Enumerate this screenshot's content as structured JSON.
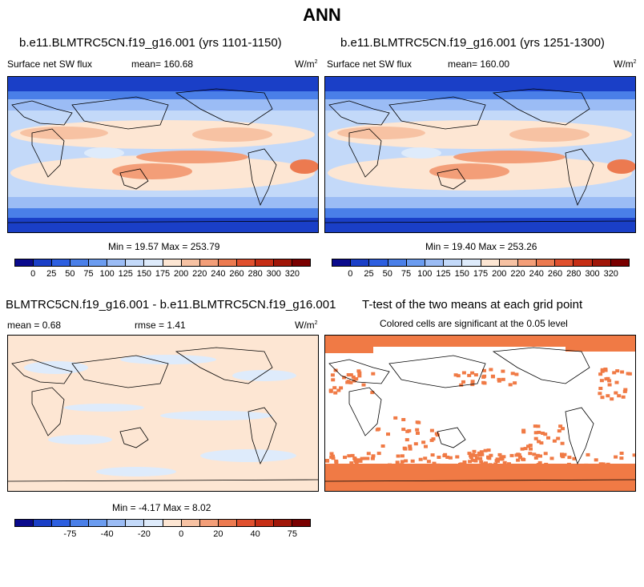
{
  "main_title": "ANN",
  "panels": {
    "p1": {
      "title": "b.e11.BLMTRC5CN.f19_g16.001 (yrs 1101-1150)",
      "variable": "Surface net SW flux",
      "mean": "mean= 160.68",
      "units": "W/m",
      "units_sup": "2",
      "minmax": "Min = 19.57 Max = 253.79"
    },
    "p2": {
      "title": "b.e11.BLMTRC5CN.f19_g16.001 (yrs 1251-1300)",
      "variable": "Surface net SW flux",
      "mean": "mean= 160.00",
      "units": "W/m",
      "units_sup": "2",
      "minmax": "Min = 19.40 Max = 253.26"
    },
    "p3": {
      "title": "BLMTRC5CN.f19_g16.001 - b.e11.BLMTRC5CN.f19_g16.001",
      "mean": "mean =   0.68",
      "rmse": "rmse =   1.41",
      "units": "W/m",
      "units_sup": "2",
      "minmax": "Min =  -4.17 Max =   8.02"
    },
    "p4": {
      "title": "T-test of the two means at each grid point",
      "subtitle": "Colored cells are significant at the 0.05 level"
    }
  },
  "colorbars": {
    "abs_ticks": [
      "0",
      "25",
      "50",
      "75",
      "100",
      "125",
      "150",
      "175",
      "200",
      "220",
      "240",
      "260",
      "280",
      "300",
      "320"
    ],
    "diff_ticks": [
      "-75",
      "-40",
      "-20",
      "0",
      "20",
      "40",
      "75"
    ],
    "colors": [
      "#0a0a8c",
      "#1a3fc7",
      "#2d5fe0",
      "#4a7fe8",
      "#6b9cf0",
      "#9bbcf5",
      "#c3d9f9",
      "#deebfb",
      "#fde6d3",
      "#f7c2a3",
      "#f39e78",
      "#ec7a50",
      "#e0502e",
      "#c62e15",
      "#a01608",
      "#7a0000"
    ],
    "diff_colors": [
      "#0a0a8c",
      "#1a3fc7",
      "#2d5fe0",
      "#4a7fe8",
      "#6b9cf0",
      "#9bbcf5",
      "#c3d9f9",
      "#deebfb",
      "#fde6d3",
      "#f7c2a3",
      "#f39e78",
      "#ec7a50",
      "#e0502e",
      "#c62e15",
      "#a01608",
      "#7a0000"
    ]
  }
}
